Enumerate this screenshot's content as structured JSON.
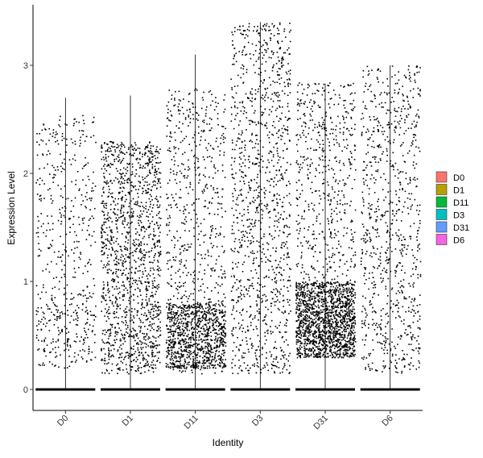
{
  "chart_data": {
    "type": "scatter",
    "subtype": "violin-jitter",
    "xlabel": "Identity",
    "ylabel": "Expression Level",
    "categories": [
      "D0",
      "D1",
      "D11",
      "D3",
      "D31",
      "D6"
    ],
    "ylim": [
      -0.18,
      3.45
    ],
    "yticks": [
      0,
      1,
      2,
      3
    ],
    "grid": false,
    "legend": {
      "position": "right",
      "entries": [
        "D0",
        "D1",
        "D11",
        "D3",
        "D31",
        "D6"
      ],
      "colors": [
        "#F8766D",
        "#B79F00",
        "#00BA38",
        "#00BFC4",
        "#619CFF",
        "#F564E3"
      ]
    },
    "point_color": "#000000",
    "series": [
      {
        "name": "D0",
        "max": 2.7,
        "nonzero_points": 550,
        "nonzero_range": [
          0.2,
          2.55
        ],
        "dense_range": [
          0.3,
          0.9
        ],
        "dense_fraction": 0.2
      },
      {
        "name": "D1",
        "max": 2.72,
        "nonzero_points": 1400,
        "nonzero_range": [
          0.15,
          2.3
        ],
        "dense_range": [
          0.2,
          2.2
        ],
        "dense_fraction": 0.0
      },
      {
        "name": "D11",
        "max": 3.1,
        "nonzero_points": 1550,
        "nonzero_range": [
          0.15,
          2.8
        ],
        "dense_range": [
          0.2,
          0.8
        ],
        "dense_fraction": 0.55
      },
      {
        "name": "D3",
        "max": 3.4,
        "nonzero_points": 1150,
        "nonzero_range": [
          0.15,
          3.4
        ],
        "dense_range": [
          0.2,
          2.1
        ],
        "dense_fraction": 0.0
      },
      {
        "name": "D31",
        "max": 2.83,
        "nonzero_points": 2100,
        "nonzero_range": [
          0.3,
          2.85
        ],
        "dense_range": [
          0.3,
          1.0
        ],
        "dense_fraction": 0.65
      },
      {
        "name": "D6",
        "max": 3.0,
        "nonzero_points": 850,
        "nonzero_range": [
          0.15,
          3.0
        ],
        "dense_range": [
          0.2,
          2.0
        ],
        "dense_fraction": 0.0
      }
    ]
  }
}
